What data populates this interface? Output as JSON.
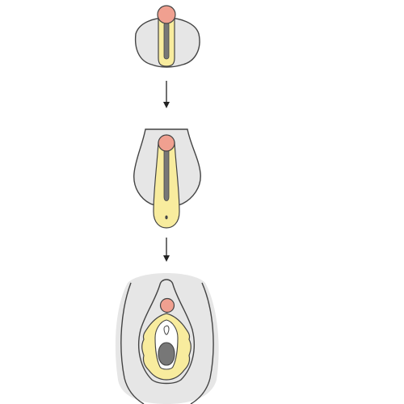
{
  "diagram": {
    "stage_count": 3,
    "connector_count": 2,
    "stages": [
      {
        "id": "stage-1"
      },
      {
        "id": "stage-2"
      },
      {
        "id": "stage-3"
      }
    ],
    "colors": {
      "background": "#ffffff",
      "tissue_fill": "#e6e6e6",
      "fold_fill": "#f8ec9e",
      "tip_fill": "#f0a090",
      "opening_fill": "#777777",
      "outline": "#444444",
      "arrow": "#222222"
    }
  }
}
